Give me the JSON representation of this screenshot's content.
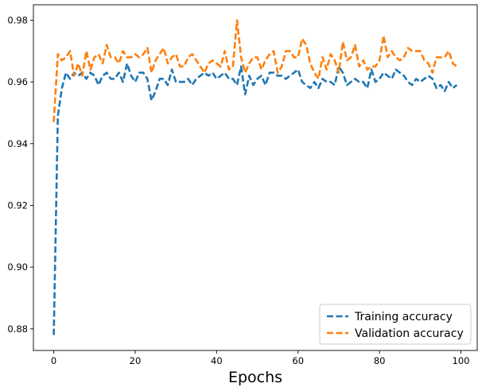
{
  "chart_data": {
    "type": "line",
    "title": "",
    "xlabel": "Epochs",
    "ylabel": "",
    "xlim": [
      -5,
      104
    ],
    "ylim": [
      0.873,
      0.985
    ],
    "x_ticks": [
      0,
      20,
      40,
      60,
      80,
      100
    ],
    "y_ticks": [
      0.88,
      0.9,
      0.92,
      0.94,
      0.96,
      0.98
    ],
    "x_tick_labels": [
      "0",
      "20",
      "40",
      "60",
      "80",
      "100"
    ],
    "y_tick_labels": [
      "0.88",
      "0.90",
      "0.92",
      "0.94",
      "0.96",
      "0.98"
    ],
    "grid": false,
    "legend_position": "bottom-right",
    "series": [
      {
        "name": "Training accuracy",
        "color": "#1f77b4",
        "x": [
          0,
          1,
          2,
          3,
          4,
          5,
          6,
          7,
          8,
          9,
          10,
          11,
          12,
          13,
          14,
          15,
          16,
          17,
          18,
          19,
          20,
          21,
          22,
          23,
          24,
          25,
          26,
          27,
          28,
          29,
          30,
          31,
          32,
          33,
          34,
          35,
          36,
          37,
          38,
          39,
          40,
          41,
          42,
          43,
          44,
          45,
          46,
          47,
          48,
          49,
          50,
          51,
          52,
          53,
          54,
          55,
          56,
          57,
          58,
          59,
          60,
          61,
          62,
          63,
          64,
          65,
          66,
          67,
          68,
          69,
          70,
          71,
          72,
          73,
          74,
          75,
          76,
          77,
          78,
          79,
          80,
          81,
          82,
          83,
          84,
          85,
          86,
          87,
          88,
          89,
          90,
          91,
          92,
          93,
          94,
          95,
          96,
          97,
          98,
          99
        ],
        "values": [
          0.878,
          0.949,
          0.958,
          0.963,
          0.961,
          0.963,
          0.962,
          0.963,
          0.961,
          0.963,
          0.962,
          0.959,
          0.962,
          0.963,
          0.961,
          0.961,
          0.963,
          0.96,
          0.966,
          0.962,
          0.96,
          0.963,
          0.963,
          0.961,
          0.954,
          0.957,
          0.961,
          0.961,
          0.959,
          0.964,
          0.96,
          0.96,
          0.96,
          0.961,
          0.959,
          0.961,
          0.962,
          0.963,
          0.962,
          0.963,
          0.961,
          0.962,
          0.963,
          0.961,
          0.961,
          0.959,
          0.965,
          0.956,
          0.962,
          0.959,
          0.961,
          0.962,
          0.959,
          0.963,
          0.963,
          0.962,
          0.962,
          0.961,
          0.962,
          0.963,
          0.964,
          0.96,
          0.959,
          0.958,
          0.96,
          0.958,
          0.961,
          0.96,
          0.96,
          0.959,
          0.965,
          0.963,
          0.959,
          0.96,
          0.961,
          0.96,
          0.96,
          0.958,
          0.964,
          0.96,
          0.961,
          0.963,
          0.962,
          0.961,
          0.964,
          0.963,
          0.962,
          0.96,
          0.959,
          0.961,
          0.96,
          0.961,
          0.962,
          0.961,
          0.958,
          0.959,
          0.957,
          0.96,
          0.958,
          0.959
        ]
      },
      {
        "name": "Validation accuracy",
        "color": "#ff7f0e",
        "x": [
          0,
          1,
          2,
          3,
          4,
          5,
          6,
          7,
          8,
          9,
          10,
          11,
          12,
          13,
          14,
          15,
          16,
          17,
          18,
          19,
          20,
          21,
          22,
          23,
          24,
          25,
          26,
          27,
          28,
          29,
          30,
          31,
          32,
          33,
          34,
          35,
          36,
          37,
          38,
          39,
          40,
          41,
          42,
          43,
          44,
          45,
          46,
          47,
          48,
          49,
          50,
          51,
          52,
          53,
          54,
          55,
          56,
          57,
          58,
          59,
          60,
          61,
          62,
          63,
          64,
          65,
          66,
          67,
          68,
          69,
          70,
          71,
          72,
          73,
          74,
          75,
          76,
          77,
          78,
          79,
          80,
          81,
          82,
          83,
          84,
          85,
          86,
          87,
          88,
          89,
          90,
          91,
          92,
          93,
          94,
          95,
          96,
          97,
          98,
          99
        ],
        "values": [
          0.947,
          0.969,
          0.967,
          0.968,
          0.97,
          0.962,
          0.966,
          0.962,
          0.97,
          0.964,
          0.968,
          0.969,
          0.966,
          0.972,
          0.968,
          0.968,
          0.966,
          0.97,
          0.968,
          0.968,
          0.969,
          0.968,
          0.969,
          0.971,
          0.963,
          0.967,
          0.969,
          0.971,
          0.966,
          0.968,
          0.969,
          0.965,
          0.965,
          0.968,
          0.969,
          0.967,
          0.965,
          0.963,
          0.966,
          0.967,
          0.966,
          0.965,
          0.97,
          0.964,
          0.965,
          0.98,
          0.968,
          0.963,
          0.966,
          0.968,
          0.968,
          0.964,
          0.967,
          0.969,
          0.97,
          0.963,
          0.965,
          0.97,
          0.97,
          0.968,
          0.968,
          0.974,
          0.972,
          0.966,
          0.963,
          0.961,
          0.968,
          0.964,
          0.969,
          0.967,
          0.963,
          0.973,
          0.967,
          0.968,
          0.972,
          0.965,
          0.967,
          0.964,
          0.965,
          0.965,
          0.967,
          0.975,
          0.968,
          0.97,
          0.968,
          0.967,
          0.968,
          0.971,
          0.97,
          0.97,
          0.97,
          0.967,
          0.966,
          0.963,
          0.968,
          0.968,
          0.968,
          0.97,
          0.966,
          0.965
        ]
      }
    ]
  }
}
